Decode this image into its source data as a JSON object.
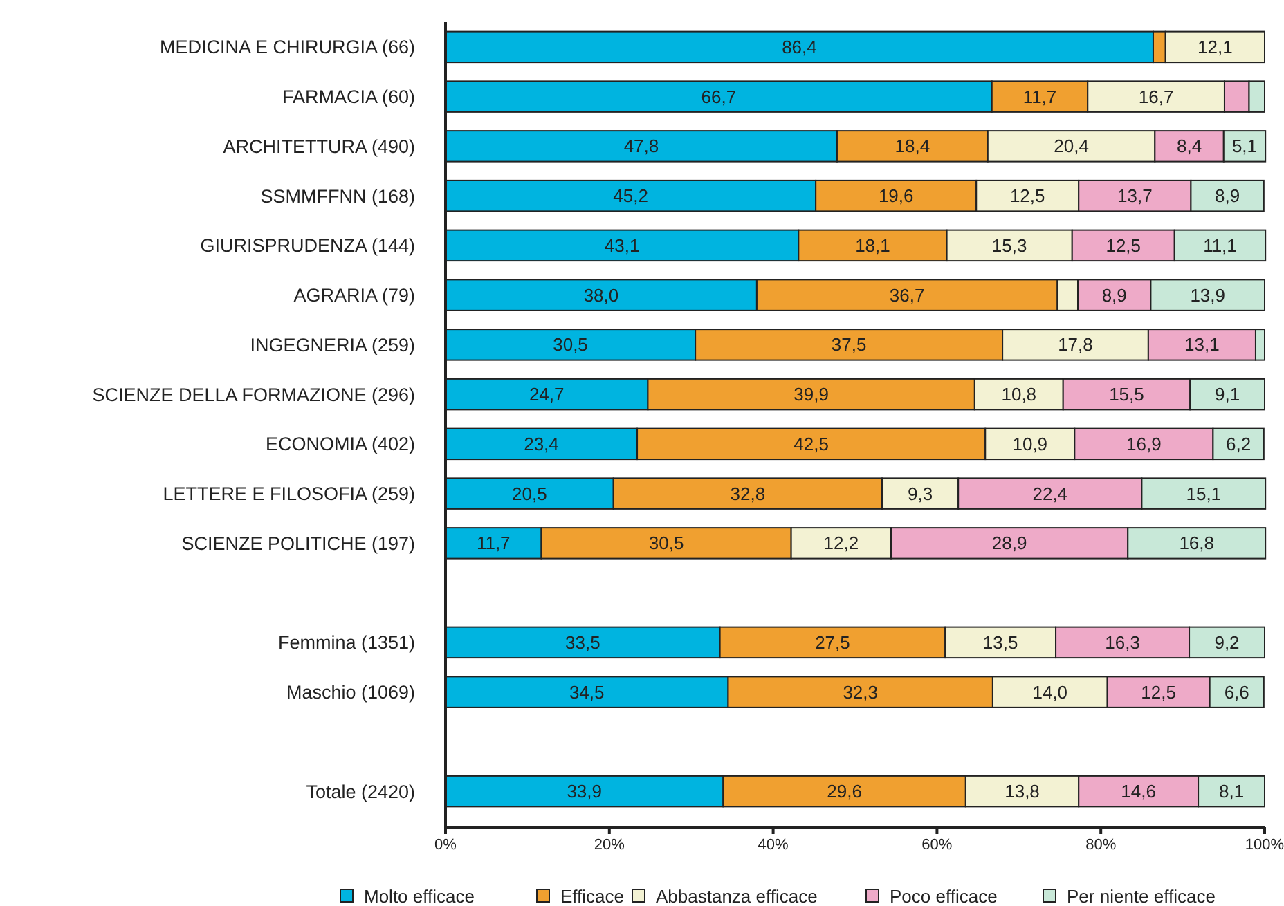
{
  "chart_data": {
    "type": "bar",
    "orientation": "horizontal",
    "stacked": true,
    "legend": "bottom",
    "grid": false,
    "categories": [
      "MEDICINA E CHIRURGIA (66)",
      "FARMACIA (60)",
      "ARCHITETTURA (490)",
      "SSMMFFNN (168)",
      "GIURISPRUDENZA (144)",
      "AGRARIA (79)",
      "INGEGNERIA (259)",
      "SCIENZE DELLA FORMAZIONE (296)",
      "ECONOMIA (402)",
      "LETTERE E FILOSOFIA (259)",
      "SCIENZE POLITICHE (197)",
      null,
      "Femmina (1351)",
      "Maschio (1069)",
      null,
      "Totale (2420)"
    ],
    "xlim": [
      0,
      100
    ],
    "xticks": [
      {
        "value": 0,
        "label": "0%"
      },
      {
        "value": 20,
        "label": "20%"
      },
      {
        "value": 40,
        "label": "40%"
      },
      {
        "value": 60,
        "label": "60%"
      },
      {
        "value": 80,
        "label": "80%"
      },
      {
        "value": 100,
        "label": "100%"
      }
    ],
    "series": [
      {
        "name": "Molto efficace",
        "color": "#00b4e0",
        "values": [
          86.4,
          66.7,
          47.8,
          45.2,
          43.1,
          38.0,
          30.5,
          24.7,
          23.4,
          20.5,
          11.7,
          null,
          33.5,
          34.5,
          null,
          33.9
        ],
        "value_labels": [
          "86,4",
          "66,7",
          "47,8",
          "45,2",
          "43,1",
          "38,0",
          "30,5",
          "24,7",
          "23,4",
          "20,5",
          "11,7",
          null,
          "33,5",
          "34,5",
          null,
          "33,9"
        ]
      },
      {
        "name": "Efficace",
        "color": "#f0a030",
        "values": [
          1.5,
          11.7,
          18.4,
          19.6,
          18.1,
          36.7,
          37.5,
          39.9,
          42.5,
          32.8,
          30.5,
          null,
          27.5,
          32.3,
          null,
          29.6
        ],
        "value_labels": [
          null,
          "11,7",
          "18,4",
          "19,6",
          "18,1",
          "36,7",
          "37,5",
          "39,9",
          "42,5",
          "32,8",
          "30,5",
          null,
          "27,5",
          "32,3",
          null,
          "29,6"
        ]
      },
      {
        "name": "Abbastanza efficace",
        "color": "#f3f2d3",
        "values": [
          12.1,
          16.7,
          20.4,
          12.5,
          15.3,
          2.5,
          17.8,
          10.8,
          10.9,
          9.3,
          12.2,
          null,
          13.5,
          14.0,
          null,
          13.8
        ],
        "value_labels": [
          "12,1",
          "16,7",
          "20,4",
          "12,5",
          "15,3",
          null,
          "17,8",
          "10,8",
          "10,9",
          "9,3",
          "12,2",
          null,
          "13,5",
          "14,0",
          null,
          "13,8"
        ]
      },
      {
        "name": "Poco efficace",
        "color": "#eeaac8",
        "values": [
          0,
          3.0,
          8.4,
          13.7,
          12.5,
          8.9,
          13.1,
          15.5,
          16.9,
          22.4,
          28.9,
          null,
          16.3,
          12.5,
          null,
          14.6
        ],
        "value_labels": [
          null,
          null,
          "8,4",
          "13,7",
          "12,5",
          "8,9",
          "13,1",
          "15,5",
          "16,9",
          "22,4",
          "28,9",
          null,
          "16,3",
          "12,5",
          null,
          "14,6"
        ]
      },
      {
        "name": "Per niente efficace",
        "color": "#c8e8d8",
        "values": [
          0,
          1.9,
          5.1,
          8.9,
          11.1,
          13.9,
          1.1,
          9.1,
          6.2,
          15.1,
          16.8,
          null,
          9.2,
          6.6,
          null,
          8.1
        ],
        "value_labels": [
          null,
          null,
          "5,1",
          "8,9",
          "11,1",
          "13,9",
          null,
          "9,1",
          "6,2",
          "15,1",
          "16,8",
          null,
          "9,2",
          "6,6",
          null,
          "8,1"
        ]
      }
    ]
  }
}
